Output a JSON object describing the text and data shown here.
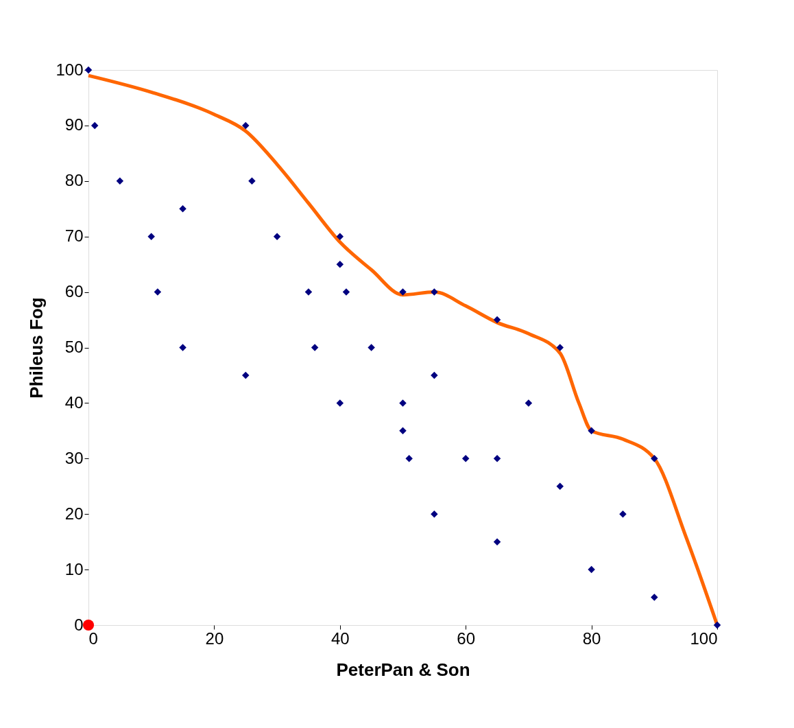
{
  "chart_data": {
    "type": "scatter",
    "xlabel": "PeterPan & Son",
    "ylabel": "Phileus Fog",
    "xlim": [
      0,
      100
    ],
    "ylim": [
      0,
      100
    ],
    "xticks": [
      0,
      20,
      40,
      60,
      80,
      100
    ],
    "yticks": [
      0,
      10,
      20,
      30,
      40,
      50,
      60,
      70,
      80,
      90,
      100
    ],
    "grid": false,
    "series": [
      {
        "color": "#000080",
        "marker": "diamond",
        "x": [
          0,
          1,
          5,
          10,
          11,
          15,
          15,
          25,
          26,
          25,
          30,
          35,
          36,
          40,
          40,
          41,
          40,
          45,
          50,
          50,
          50,
          51,
          55,
          55,
          55,
          60,
          65,
          65,
          65,
          70,
          75,
          75,
          80,
          80,
          85,
          90,
          90,
          100
        ],
        "values": [
          100,
          90,
          80,
          70,
          60,
          75,
          50,
          90,
          80,
          45,
          70,
          60,
          50,
          70,
          65,
          60,
          40,
          50,
          60,
          40,
          35,
          30,
          60,
          45,
          20,
          30,
          55,
          30,
          15,
          40,
          50,
          25,
          35,
          10,
          20,
          30,
          5,
          0
        ]
      },
      {
        "type": "line",
        "color": "#ff6600",
        "marker": "none",
        "line_style": "solid",
        "x": [
          0,
          10,
          20,
          25,
          30,
          35,
          40,
          45,
          50,
          55,
          60,
          65,
          70,
          75,
          78,
          80,
          85,
          90,
          95,
          100
        ],
        "values": [
          99,
          96,
          92,
          89,
          83,
          76,
          69,
          64,
          59.5,
          60,
          57.5,
          54.5,
          52.5,
          49,
          40,
          35,
          33.5,
          30,
          16,
          0
        ]
      },
      {
        "color": "#ff0000",
        "marker": "circle",
        "x": [
          0
        ],
        "values": [
          0
        ]
      }
    ]
  }
}
